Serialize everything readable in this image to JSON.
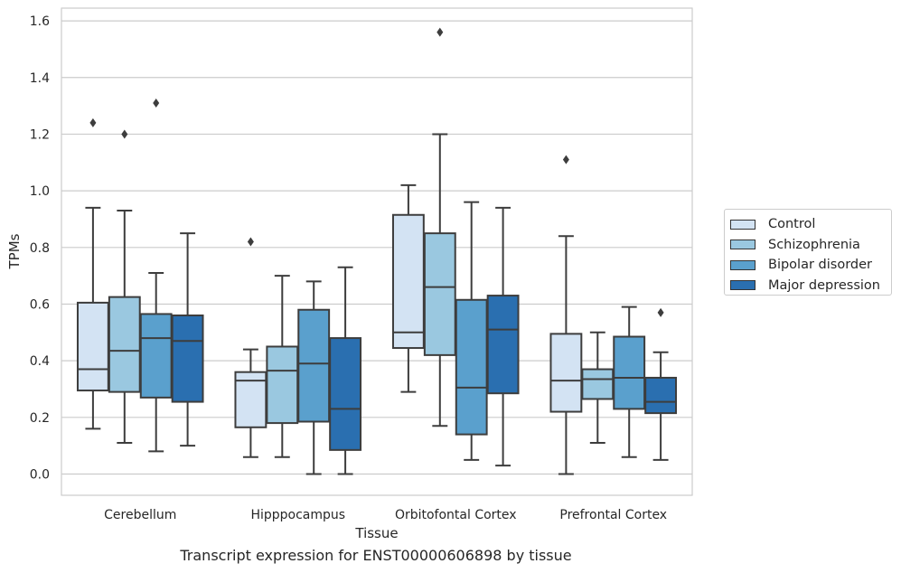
{
  "chart_data": {
    "type": "box",
    "xlabel": "Tissue",
    "ylabel": "TPMs",
    "ylim": [
      -0.075,
      1.645
    ],
    "yticks": [
      "0.0",
      "0.2",
      "0.4",
      "0.6",
      "0.8",
      "1.0",
      "1.2",
      "1.4",
      "1.6"
    ],
    "categories": [
      "Cerebellum",
      "Hipppocampus",
      "Orbitofontal Cortex",
      "Prefrontal Cortex"
    ],
    "grid": true,
    "legend_position": "right",
    "series": [
      {
        "name": "Control",
        "color": "#d3e3f3",
        "boxes": [
          {
            "whisker_low": 0.16,
            "q1": 0.295,
            "median": 0.37,
            "q3": 0.605,
            "whisker_high": 0.94,
            "outliers": [
              1.24
            ]
          },
          {
            "whisker_low": 0.06,
            "q1": 0.165,
            "median": 0.33,
            "q3": 0.36,
            "whisker_high": 0.44,
            "outliers": [
              0.82
            ]
          },
          {
            "whisker_low": 0.29,
            "q1": 0.445,
            "median": 0.5,
            "q3": 0.915,
            "whisker_high": 1.02,
            "outliers": []
          },
          {
            "whisker_low": 0.0,
            "q1": 0.22,
            "median": 0.33,
            "q3": 0.495,
            "whisker_high": 0.84,
            "outliers": [
              1.11
            ]
          }
        ]
      },
      {
        "name": "Schizophrenia",
        "color": "#9ac8e0",
        "boxes": [
          {
            "whisker_low": 0.11,
            "q1": 0.29,
            "median": 0.435,
            "q3": 0.625,
            "whisker_high": 0.93,
            "outliers": [
              1.2
            ]
          },
          {
            "whisker_low": 0.06,
            "q1": 0.18,
            "median": 0.365,
            "q3": 0.45,
            "whisker_high": 0.7,
            "outliers": []
          },
          {
            "whisker_low": 0.17,
            "q1": 0.42,
            "median": 0.66,
            "q3": 0.85,
            "whisker_high": 1.2,
            "outliers": [
              1.56
            ]
          },
          {
            "whisker_low": 0.11,
            "q1": 0.265,
            "median": 0.335,
            "q3": 0.37,
            "whisker_high": 0.5,
            "outliers": []
          }
        ]
      },
      {
        "name": "Bipolar disorder",
        "color": "#5aa0cd",
        "boxes": [
          {
            "whisker_low": 0.08,
            "q1": 0.27,
            "median": 0.48,
            "q3": 0.565,
            "whisker_high": 0.71,
            "outliers": [
              1.31
            ]
          },
          {
            "whisker_low": 0.0,
            "q1": 0.185,
            "median": 0.39,
            "q3": 0.58,
            "whisker_high": 0.68,
            "outliers": []
          },
          {
            "whisker_low": 0.05,
            "q1": 0.14,
            "median": 0.305,
            "q3": 0.615,
            "whisker_high": 0.96,
            "outliers": []
          },
          {
            "whisker_low": 0.06,
            "q1": 0.23,
            "median": 0.34,
            "q3": 0.485,
            "whisker_high": 0.59,
            "outliers": []
          }
        ]
      },
      {
        "name": "Major depression",
        "color": "#2a6fb0",
        "boxes": [
          {
            "whisker_low": 0.1,
            "q1": 0.255,
            "median": 0.47,
            "q3": 0.56,
            "whisker_high": 0.85,
            "outliers": []
          },
          {
            "whisker_low": 0.0,
            "q1": 0.085,
            "median": 0.23,
            "q3": 0.48,
            "whisker_high": 0.73,
            "outliers": []
          },
          {
            "whisker_low": 0.03,
            "q1": 0.285,
            "median": 0.51,
            "q3": 0.63,
            "whisker_high": 0.94,
            "outliers": []
          },
          {
            "whisker_low": 0.05,
            "q1": 0.215,
            "median": 0.255,
            "q3": 0.34,
            "whisker_high": 0.43,
            "outliers": [
              0.57
            ]
          }
        ]
      }
    ]
  },
  "caption": "Transcript expression for ENST00000606898 by tissue"
}
